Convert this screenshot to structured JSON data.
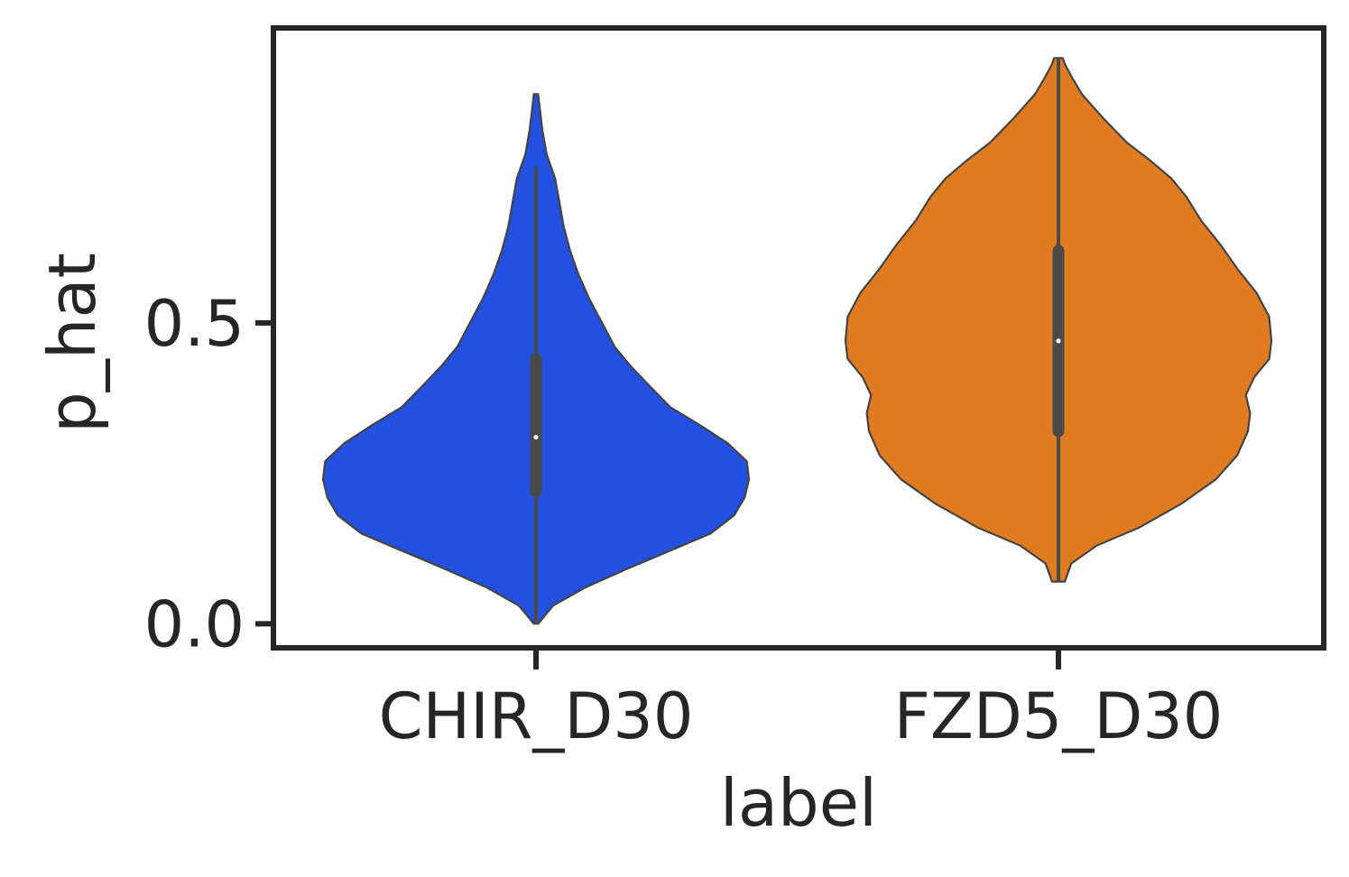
{
  "chart_data": {
    "type": "violin",
    "title": "",
    "xlabel": "label",
    "ylabel": "p_hat",
    "categories": [
      "CHIR_D30",
      "FZD5_D30"
    ],
    "ylim": [
      -0.04,
      0.99
    ],
    "yticks": [
      0.0,
      0.5
    ],
    "ytick_labels": [
      "0.0",
      "0.5"
    ],
    "grid": false,
    "legend": "none",
    "series": [
      {
        "category": "CHIR_D30",
        "color": "#2350e0",
        "min": 0.0,
        "max": 0.88,
        "whisker_top": 0.76,
        "q1": 0.22,
        "median": 0.31,
        "q3": 0.44,
        "density": [
          [
            0.0,
            0.01
          ],
          [
            0.03,
            0.08
          ],
          [
            0.06,
            0.23
          ],
          [
            0.09,
            0.42
          ],
          [
            0.12,
            0.62
          ],
          [
            0.15,
            0.82
          ],
          [
            0.18,
            0.93
          ],
          [
            0.21,
            0.98
          ],
          [
            0.24,
            1.0
          ],
          [
            0.27,
            0.99
          ],
          [
            0.3,
            0.9
          ],
          [
            0.33,
            0.77
          ],
          [
            0.36,
            0.63
          ],
          [
            0.4,
            0.52
          ],
          [
            0.43,
            0.44
          ],
          [
            0.46,
            0.37
          ],
          [
            0.5,
            0.31
          ],
          [
            0.54,
            0.25
          ],
          [
            0.58,
            0.2
          ],
          [
            0.62,
            0.16
          ],
          [
            0.66,
            0.13
          ],
          [
            0.7,
            0.11
          ],
          [
            0.74,
            0.09
          ],
          [
            0.76,
            0.07
          ],
          [
            0.78,
            0.05
          ],
          [
            0.82,
            0.03
          ],
          [
            0.85,
            0.02
          ],
          [
            0.88,
            0.01
          ]
        ]
      },
      {
        "category": "FZD5_D30",
        "color": "#e07b22",
        "min": 0.07,
        "max": 0.94,
        "whisker_top": 0.94,
        "q1": 0.32,
        "median": 0.47,
        "q3": 0.62,
        "density": [
          [
            0.07,
            0.03
          ],
          [
            0.1,
            0.06
          ],
          [
            0.13,
            0.18
          ],
          [
            0.16,
            0.38
          ],
          [
            0.2,
            0.58
          ],
          [
            0.24,
            0.74
          ],
          [
            0.28,
            0.84
          ],
          [
            0.32,
            0.89
          ],
          [
            0.35,
            0.9
          ],
          [
            0.38,
            0.88
          ],
          [
            0.41,
            0.92
          ],
          [
            0.44,
            0.99
          ],
          [
            0.47,
            1.0
          ],
          [
            0.51,
            0.99
          ],
          [
            0.55,
            0.93
          ],
          [
            0.59,
            0.84
          ],
          [
            0.63,
            0.76
          ],
          [
            0.67,
            0.67
          ],
          [
            0.71,
            0.6
          ],
          [
            0.74,
            0.53
          ],
          [
            0.77,
            0.43
          ],
          [
            0.8,
            0.32
          ],
          [
            0.84,
            0.21
          ],
          [
            0.88,
            0.11
          ],
          [
            0.91,
            0.06
          ],
          [
            0.93,
            0.03
          ],
          [
            0.94,
            0.02
          ]
        ]
      }
    ]
  }
}
